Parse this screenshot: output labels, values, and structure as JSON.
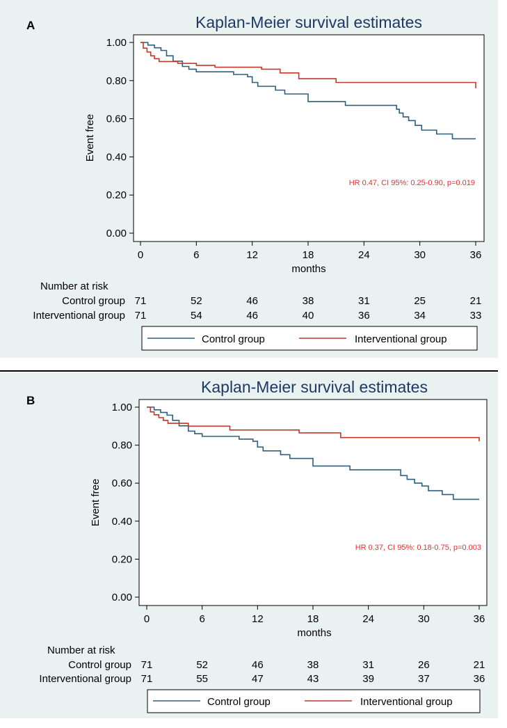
{
  "chart_data": [
    {
      "type": "line",
      "panel": "A",
      "title": "Kaplan-Meier survival estimates",
      "xlabel": "months",
      "ylabel": "Event free",
      "xlim": [
        0,
        36
      ],
      "ylim": [
        0,
        1
      ],
      "xticks": [
        0,
        6,
        12,
        18,
        24,
        30,
        36
      ],
      "yticks": [
        "0.00",
        "0.20",
        "0.40",
        "0.60",
        "0.80",
        "1.00"
      ],
      "annotation": "HR 0.47, CI 95%: 0.25-0.90, p=0.019",
      "risk_header": "Number at risk",
      "series": [
        {
          "name": "Control group",
          "color": "#2e5f7f",
          "risk": [
            "71",
            "52",
            "46",
            "38",
            "31",
            "25",
            "21"
          ],
          "steps": [
            [
              0,
              1.0
            ],
            [
              0.8,
              0.986
            ],
            [
              1.5,
              0.972
            ],
            [
              2.2,
              0.958
            ],
            [
              2.8,
              0.93
            ],
            [
              3.5,
              0.902
            ],
            [
              4.5,
              0.874
            ],
            [
              5.2,
              0.86
            ],
            [
              6,
              0.846
            ],
            [
              8,
              0.846
            ],
            [
              10,
              0.832
            ],
            [
              11.5,
              0.82
            ],
            [
              12,
              0.79
            ],
            [
              12.6,
              0.77
            ],
            [
              14.5,
              0.75
            ],
            [
              15.5,
              0.73
            ],
            [
              18,
              0.69
            ],
            [
              22,
              0.67
            ],
            [
              27.5,
              0.65
            ],
            [
              27.8,
              0.63
            ],
            [
              28.2,
              0.61
            ],
            [
              28.8,
              0.59
            ],
            [
              29.5,
              0.565
            ],
            [
              30.2,
              0.54
            ],
            [
              31.8,
              0.52
            ],
            [
              33.5,
              0.495
            ],
            [
              36,
              0.495
            ]
          ]
        },
        {
          "name": "Interventional group",
          "color": "#c0392b",
          "risk": [
            "71",
            "54",
            "46",
            "40",
            "36",
            "34",
            "33"
          ],
          "steps": [
            [
              0,
              1.0
            ],
            [
              0.3,
              0.97
            ],
            [
              0.7,
              0.95
            ],
            [
              1.1,
              0.93
            ],
            [
              1.5,
              0.915
            ],
            [
              2,
              0.9
            ],
            [
              4,
              0.89
            ],
            [
              6,
              0.88
            ],
            [
              8,
              0.87
            ],
            [
              12,
              0.87
            ],
            [
              13,
              0.86
            ],
            [
              15,
              0.84
            ],
            [
              17,
              0.81
            ],
            [
              21,
              0.79
            ],
            [
              35.8,
              0.79
            ],
            [
              36,
              0.76
            ]
          ]
        }
      ]
    },
    {
      "type": "line",
      "panel": "B",
      "title": "Kaplan-Meier survival estimates",
      "xlabel": "months",
      "ylabel": "Event free",
      "xlim": [
        0,
        36
      ],
      "ylim": [
        0,
        1
      ],
      "xticks": [
        0,
        6,
        12,
        18,
        24,
        30,
        36
      ],
      "yticks": [
        "0.00",
        "0.20",
        "0.40",
        "0.60",
        "0.80",
        "1.00"
      ],
      "annotation": "HR 0.37, CI 95%: 0.18-0.75, p=0.003",
      "risk_header": "Number at risk",
      "series": [
        {
          "name": "Control group",
          "color": "#2e5f7f",
          "risk": [
            "71",
            "52",
            "46",
            "38",
            "31",
            "26",
            "21"
          ],
          "steps": [
            [
              0,
              1.0
            ],
            [
              0.8,
              0.986
            ],
            [
              1.5,
              0.972
            ],
            [
              2.2,
              0.958
            ],
            [
              2.8,
              0.93
            ],
            [
              3.5,
              0.902
            ],
            [
              4.5,
              0.874
            ],
            [
              5.2,
              0.86
            ],
            [
              6,
              0.846
            ],
            [
              9,
              0.846
            ],
            [
              10,
              0.832
            ],
            [
              11.5,
              0.82
            ],
            [
              12,
              0.79
            ],
            [
              12.6,
              0.77
            ],
            [
              14.5,
              0.75
            ],
            [
              15.5,
              0.73
            ],
            [
              18,
              0.69
            ],
            [
              22,
              0.67
            ],
            [
              27.5,
              0.64
            ],
            [
              28.2,
              0.62
            ],
            [
              29,
              0.6
            ],
            [
              29.8,
              0.585
            ],
            [
              30.5,
              0.56
            ],
            [
              32,
              0.54
            ],
            [
              33.2,
              0.515
            ],
            [
              36,
              0.515
            ]
          ]
        },
        {
          "name": "Interventional group",
          "color": "#c0392b",
          "risk": [
            "71",
            "55",
            "47",
            "43",
            "39",
            "37",
            "36"
          ],
          "steps": [
            [
              0,
              1.0
            ],
            [
              0.4,
              0.975
            ],
            [
              0.8,
              0.96
            ],
            [
              1.3,
              0.945
            ],
            [
              1.8,
              0.93
            ],
            [
              2.3,
              0.915
            ],
            [
              4.5,
              0.9
            ],
            [
              9,
              0.88
            ],
            [
              16.5,
              0.865
            ],
            [
              21,
              0.84
            ],
            [
              35.8,
              0.84
            ],
            [
              36,
              0.82
            ]
          ]
        }
      ]
    }
  ]
}
